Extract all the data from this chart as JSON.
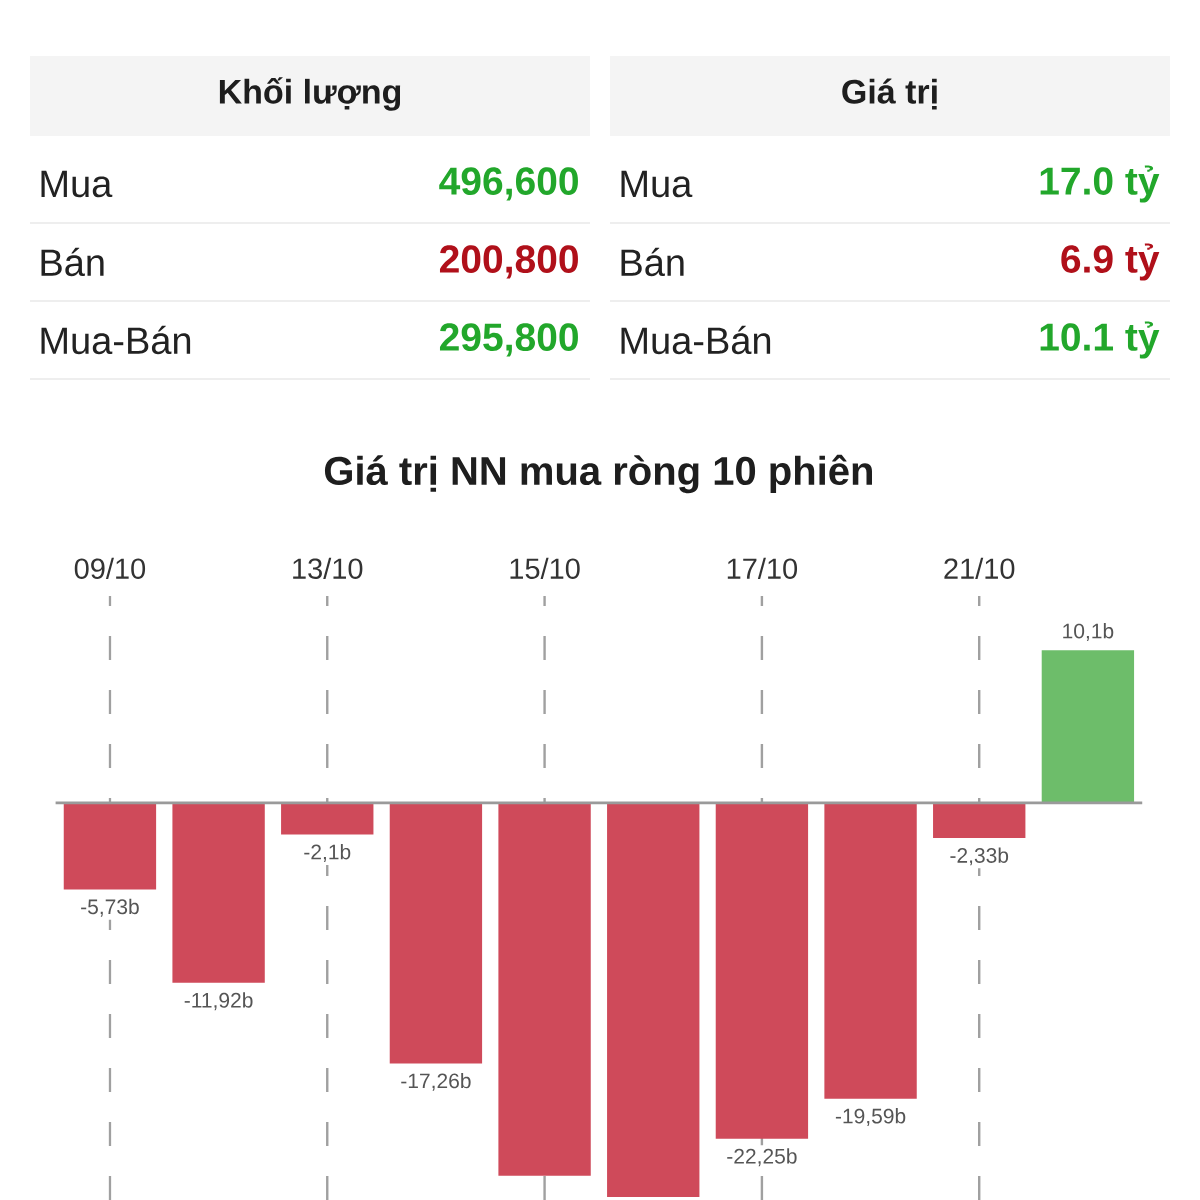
{
  "chart_data": [
    {
      "type": "other",
      "title": "Khối lượng",
      "categories": [
        "Mua",
        "Bán",
        "Mua-Bán"
      ],
      "value_labels": [
        "496,600",
        "200,800",
        "295,800"
      ],
      "colors": [
        "#22a72b",
        "#b0101a",
        "#22a72b"
      ]
    },
    {
      "type": "other",
      "title": "Giá trị",
      "categories": [
        "Mua",
        "Bán",
        "Mua-Bán"
      ],
      "value_labels": [
        "17.0 tỷ",
        "6.9 tỷ",
        "10.1 tỷ"
      ],
      "colors": [
        "#22a72b",
        "#b0101a",
        "#22a72b"
      ]
    },
    {
      "type": "bar",
      "title": "Giá trị NN mua ròng 10 phiên",
      "categories": [
        "09/10",
        null,
        "13/10",
        null,
        "15/10",
        null,
        "17/10",
        null,
        "21/10",
        null
      ],
      "values": [
        -5.73,
        -11.92,
        -2.1,
        -17.26,
        -24.7,
        -26.1,
        -22.25,
        -19.59,
        -2.33,
        10.1
      ],
      "colors": [
        "#cf4a5a",
        "#cf4a5a",
        "#cf4a5a",
        "#cf4a5a",
        "#cf4a5a",
        "#cf4a5a",
        "#cf4a5a",
        "#cf4a5a",
        "#cf4a5a",
        "#6dbd6a"
      ],
      "value_labels": [
        "-5,73b",
        "-11,92b",
        "-2,1b",
        "-17,26b",
        null,
        null,
        "-22,25b",
        "-19,59b",
        "-2,33b",
        "10,1b"
      ],
      "ylim": [
        -26.3,
        13.7
      ],
      "grid": "x"
    }
  ]
}
